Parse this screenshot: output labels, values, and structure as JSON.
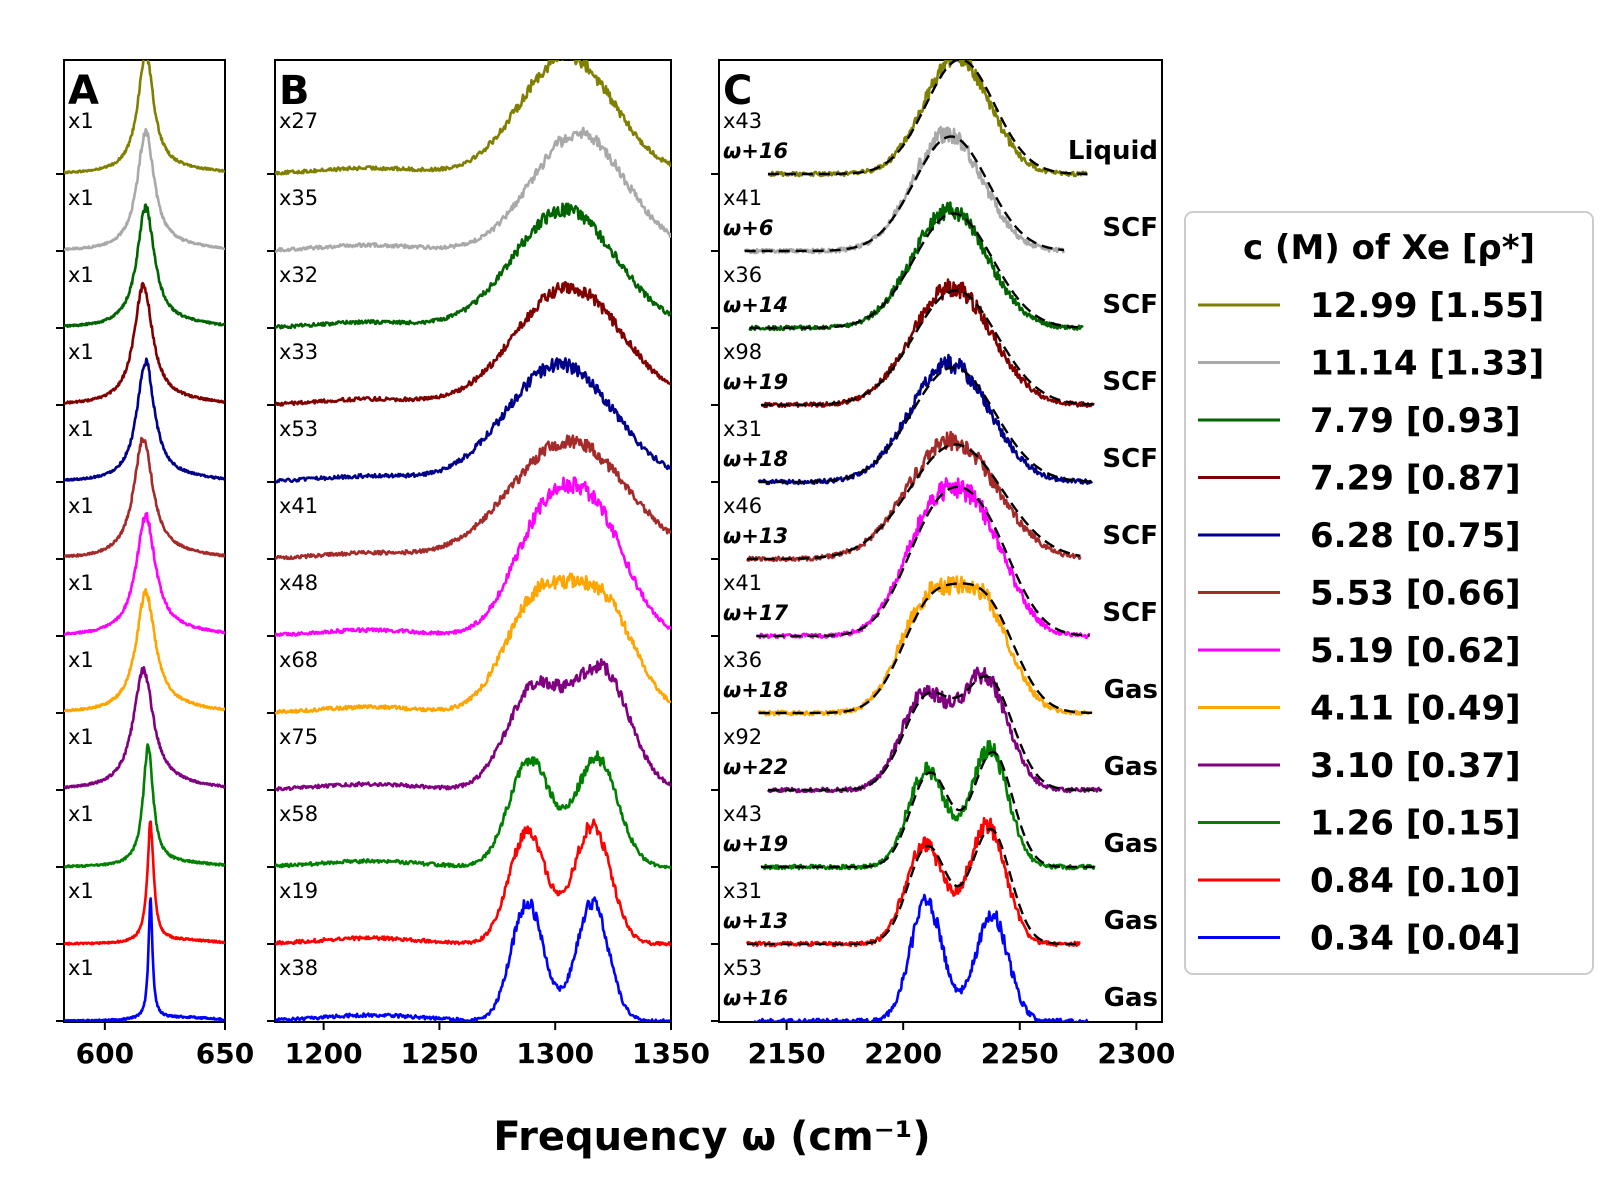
{
  "chart_data": {
    "type": "line",
    "title": "",
    "xlabel": "Frequency ω (cm⁻¹)",
    "ylabel": "",
    "legend": {
      "title": "c (M) of Xe [ρ*]",
      "placement": "right"
    },
    "panels": [
      {
        "letter": "A",
        "xlim": [
          583,
          650
        ],
        "xticks": [
          600,
          650
        ],
        "xtick_labels": [
          "600",
          "650"
        ]
      },
      {
        "letter": "B",
        "xlim": [
          1179,
          1350
        ],
        "xticks": [
          1200,
          1250,
          1300,
          1350
        ],
        "xtick_labels": [
          "1200",
          "1250",
          "1300",
          "1350"
        ]
      },
      {
        "letter": "C",
        "xlim": [
          2121,
          2311
        ],
        "xticks": [
          2150,
          2200,
          2250,
          2300
        ],
        "xtick_labels": [
          "2150",
          "2200",
          "2250",
          "2300"
        ]
      }
    ],
    "series": [
      {
        "name": "12.99 [1.55]",
        "color": "#808000",
        "scale_A": "x1",
        "scale_B": "x27",
        "scale_C": "x43",
        "shift_C": "ω+16",
        "phase": "Liquid",
        "peakA": 617,
        "widthA": 4.0,
        "bPeaks": [
          [
            1305,
            20,
            1.0
          ]
        ],
        "cPeaks": [
          [
            2223,
            14,
            1.0
          ]
        ],
        "cBounds": [
          2142,
          2279
        ]
      },
      {
        "name": "11.14 [1.33]",
        "color": "#a9a9a9",
        "scale_A": "x1",
        "scale_B": "x35",
        "scale_C": "x41",
        "shift_C": "ω+6",
        "phase": "SCF",
        "peakA": 617,
        "widthA": 4.2,
        "bPeaks": [
          [
            1310,
            20,
            1.0
          ]
        ],
        "cPeaks": [
          [
            2219,
            15,
            1.0
          ]
        ],
        "cBounds": [
          2132,
          2269
        ]
      },
      {
        "name": "7.79 [0.93]",
        "color": "#006400",
        "scale_A": "x1",
        "scale_B": "x32",
        "scale_C": "x36",
        "shift_C": "ω+14",
        "phase": "SCF",
        "peakA": 617,
        "widthA": 4.4,
        "bPeaks": [
          [
            1304,
            22,
            1.0
          ]
        ],
        "cPeaks": [
          [
            2220,
            16,
            1.0
          ]
        ],
        "cBounds": [
          2134,
          2277
        ]
      },
      {
        "name": "7.29 [0.87]",
        "color": "#800000",
        "scale_A": "x1",
        "scale_B": "x33",
        "scale_C": "x98",
        "shift_C": "ω+19",
        "phase": "SCF",
        "peakA": 616,
        "widthA": 4.6,
        "bPeaks": [
          [
            1306,
            23,
            1.0
          ]
        ],
        "cPeaks": [
          [
            2221,
            17,
            1.0
          ]
        ],
        "cBounds": [
          2139,
          2282
        ]
      },
      {
        "name": "6.28 [0.75]",
        "color": "#00008b",
        "scale_A": "x1",
        "scale_B": "x53",
        "scale_C": "x31",
        "shift_C": "ω+18",
        "phase": "SCF",
        "peakA": 617,
        "widthA": 4.4,
        "bPeaks": [
          [
            1302,
            23,
            1.0
          ]
        ],
        "cPeaks": [
          [
            2220,
            17,
            1.0
          ]
        ],
        "cBounds": [
          2138,
          2281
        ]
      },
      {
        "name": "5.53 [0.66]",
        "color": "#a52a2a",
        "scale_A": "x1",
        "scale_B": "x41",
        "scale_C": "x46",
        "shift_C": "ω+13",
        "phase": "SCF",
        "peakA": 616,
        "widthA": 4.8,
        "bPeaks": [
          [
            1306,
            25,
            1.0
          ]
        ],
        "cPeaks": [
          [
            2221,
            19,
            1.0
          ]
        ],
        "cBounds": [
          2133,
          2276
        ]
      },
      {
        "name": "5.19 [0.62]",
        "color": "#ff00ff",
        "scale_A": "x1",
        "scale_B": "x48",
        "scale_C": "x41",
        "shift_C": "ω+17",
        "phase": "SCF",
        "peakA": 617,
        "widthA": 4.8,
        "bPeaks": [
          [
            1295,
            14,
            0.9
          ],
          [
            1318,
            14,
            0.9
          ]
        ],
        "cPeaks": [
          [
            2212,
            13,
            0.9
          ],
          [
            2233,
            13,
            0.85
          ]
        ],
        "cBounds": [
          2137,
          2280
        ]
      },
      {
        "name": "4.11 [0.49]",
        "color": "#ffa500",
        "scale_A": "x1",
        "scale_B": "x68",
        "scale_C": "x36",
        "shift_C": "ω+18",
        "phase": "Gas",
        "peakA": 617,
        "widthA": 4.8,
        "bPeaks": [
          [
            1292,
            14,
            0.92
          ],
          [
            1320,
            14,
            0.92
          ]
        ],
        "cPeaks": [
          [
            2210,
            12,
            0.88
          ],
          [
            2234,
            12,
            0.9
          ]
        ],
        "cBounds": [
          2138,
          2281
        ]
      },
      {
        "name": "3.10 [0.37]",
        "color": "#800080",
        "scale_A": "x1",
        "scale_B": "x75",
        "scale_C": "x92",
        "shift_C": "ω+22",
        "phase": "Gas",
        "peakA": 616,
        "widthA": 5.0,
        "bPeaks": [
          [
            1291,
            12,
            0.85
          ],
          [
            1320,
            12,
            1.0
          ]
        ],
        "cPeaks": [
          [
            2209,
            10,
            0.8
          ],
          [
            2235,
            10,
            0.95
          ]
        ],
        "cBounds": [
          2142,
          2285
        ]
      },
      {
        "name": "1.26 [0.15]",
        "color": "#008000",
        "scale_A": "x1",
        "scale_B": "x58",
        "scale_C": "x43",
        "shift_C": "ω+19",
        "phase": "Gas",
        "peakA": 618,
        "widthA": 2.5,
        "bPeaks": [
          [
            1289,
            9,
            0.9
          ],
          [
            1318,
            9,
            0.92
          ]
        ],
        "cPeaks": [
          [
            2210,
            8,
            0.82
          ],
          [
            2237,
            8,
            1.0
          ]
        ],
        "cBounds": [
          2139,
          2282
        ]
      },
      {
        "name": "0.84 [0.10]",
        "color": "#ff0000",
        "scale_A": "x1",
        "scale_B": "x19",
        "scale_C": "x31",
        "shift_C": "ω+13",
        "phase": "Gas",
        "peakA": 619,
        "widthA": 1.6,
        "bPeaks": [
          [
            1288,
            8,
            0.95
          ],
          [
            1316,
            8,
            1.0
          ]
        ],
        "cPeaks": [
          [
            2209,
            8,
            0.85
          ],
          [
            2236,
            8,
            1.0
          ]
        ],
        "cBounds": [
          2133,
          2276
        ]
      },
      {
        "name": "0.34 [0.04]",
        "color": "#0000ff",
        "scale_A": "x1",
        "scale_B": "x38",
        "scale_C": "x53",
        "shift_C": "ω+16",
        "phase": "Gas",
        "peakA": 619,
        "widthA": 1.0,
        "bPeaks": [
          [
            1288,
            7,
            1.0
          ],
          [
            1316,
            7,
            1.0
          ]
        ],
        "cPeaks": [
          [
            2210,
            7,
            1.0
          ],
          [
            2238,
            7,
            0.9
          ]
        ],
        "cBounds": [
          2136,
          2279
        ]
      }
    ]
  }
}
